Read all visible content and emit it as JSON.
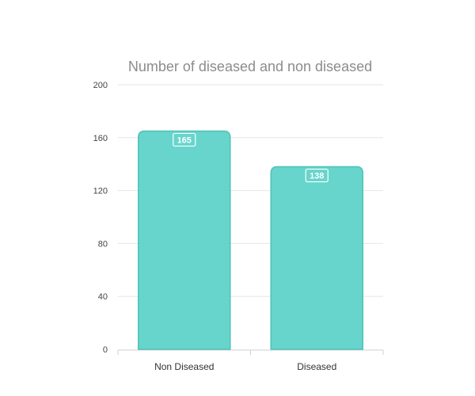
{
  "chart_data": {
    "type": "bar",
    "title": "Number of diseased and non diseased",
    "categories": [
      "Non Diseased",
      "Diseased"
    ],
    "values": [
      165,
      138
    ],
    "data_labels": [
      "165",
      "138"
    ],
    "ylim": [
      0,
      200
    ],
    "yticks": [
      0,
      40,
      80,
      120,
      160,
      200
    ],
    "ytick_labels": [
      "0",
      "40",
      "80",
      "120",
      "160",
      "200"
    ],
    "grid": true,
    "legend": "none",
    "colors": {
      "bar_fill": "#5fd3c9",
      "bar_stroke": "#4cc3b8",
      "grid": "#e6e6e6",
      "axis": "#d0d0d0",
      "title": "#8c8c8c"
    }
  }
}
